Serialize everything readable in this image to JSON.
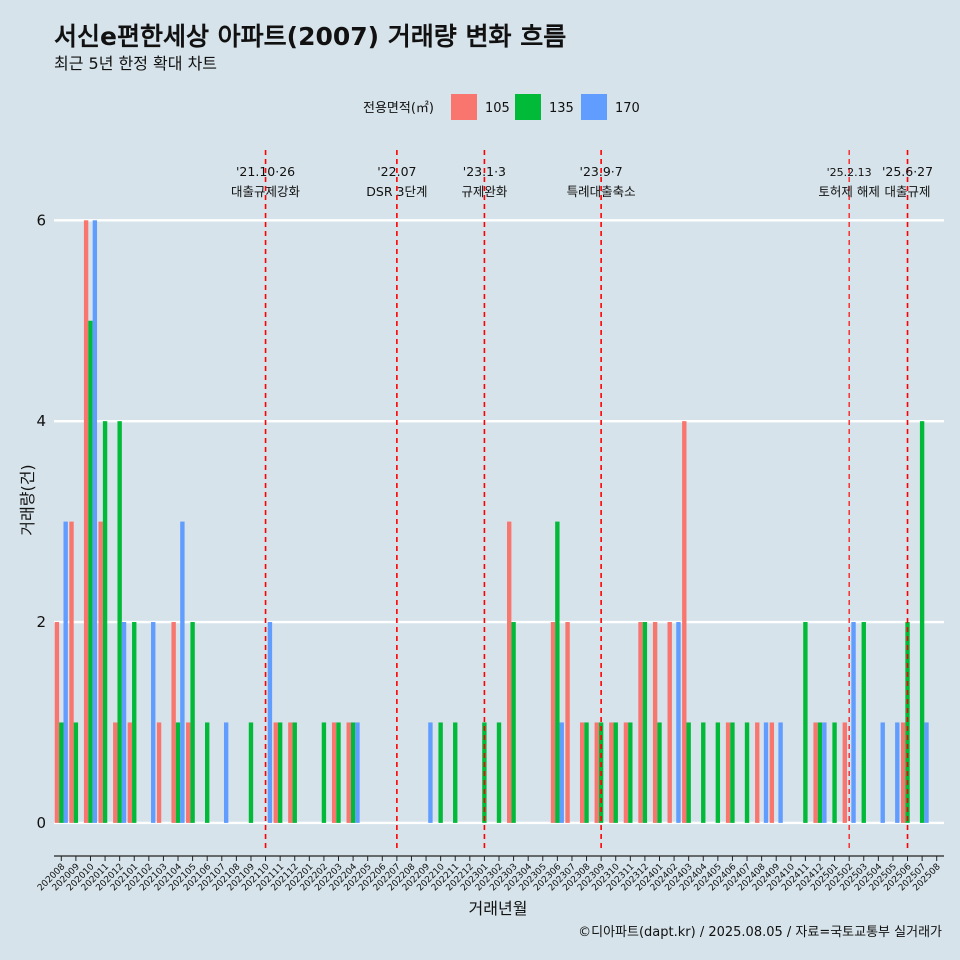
{
  "chart_data": {
    "type": "bar",
    "title": "서신e편한세상 아파트(2007) 거래량 변화 흐름",
    "subtitle": "최근 5년 한정 확대 차트",
    "xlabel": "거래년월",
    "ylabel": "거래량(건)",
    "caption": "©디아파트(dapt.kr) / 2025.08.05 / 자료=국토교통부 실거래가",
    "legend_title": "전용면적(㎡)",
    "legend_position": "top",
    "grid": true,
    "ylim": [
      -0.25,
      6.7
    ],
    "yticks": [
      0,
      2,
      4,
      6
    ],
    "categories": [
      "202008",
      "202009",
      "202010",
      "202011",
      "202012",
      "202101",
      "202102",
      "202103",
      "202104",
      "202105",
      "202106",
      "202107",
      "202108",
      "202109",
      "202110",
      "202111",
      "202112",
      "202201",
      "202202",
      "202203",
      "202204",
      "202205",
      "202206",
      "202207",
      "202208",
      "202209",
      "202210",
      "202211",
      "202212",
      "202301",
      "202302",
      "202303",
      "202304",
      "202305",
      "202306",
      "202307",
      "202308",
      "202309",
      "202310",
      "202311",
      "202312",
      "202401",
      "202402",
      "202403",
      "202404",
      "202405",
      "202406",
      "202407",
      "202408",
      "202409",
      "202410",
      "202411",
      "202412",
      "202501",
      "202502",
      "202503",
      "202504",
      "202505",
      "202506",
      "202507",
      "202508"
    ],
    "series": [
      {
        "name": "105",
        "color": "#f8766d",
        "values": [
          2,
          3,
          6,
          3,
          1,
          1,
          0,
          1,
          2,
          1,
          0,
          0,
          0,
          0,
          0,
          1,
          1,
          0,
          0,
          1,
          1,
          0,
          0,
          0,
          0,
          0,
          0,
          0,
          0,
          0,
          0,
          3,
          0,
          0,
          2,
          2,
          1,
          1,
          1,
          1,
          2,
          2,
          2,
          4,
          0,
          0,
          1,
          0,
          1,
          1,
          0,
          0,
          1,
          0,
          1,
          0,
          0,
          0,
          1,
          0,
          0
        ]
      },
      {
        "name": "135",
        "color": "#00ba38",
        "values": [
          1,
          1,
          5,
          4,
          4,
          2,
          0,
          0,
          1,
          2,
          1,
          0,
          0,
          1,
          0,
          1,
          1,
          0,
          1,
          1,
          1,
          0,
          0,
          0,
          0,
          0,
          1,
          1,
          0,
          1,
          1,
          2,
          0,
          0,
          3,
          0,
          1,
          1,
          1,
          1,
          2,
          1,
          0,
          1,
          1,
          1,
          1,
          1,
          0,
          0,
          0,
          2,
          1,
          1,
          0,
          2,
          0,
          0,
          2,
          4,
          0
        ]
      },
      {
        "name": "170",
        "color": "#619cff",
        "values": [
          3,
          0,
          6,
          0,
          2,
          0,
          2,
          0,
          3,
          0,
          0,
          1,
          0,
          0,
          2,
          0,
          0,
          0,
          0,
          0,
          1,
          0,
          0,
          0,
          0,
          1,
          0,
          0,
          0,
          0,
          0,
          0,
          0,
          0,
          1,
          0,
          0,
          0,
          0,
          0,
          0,
          0,
          2,
          0,
          0,
          0,
          0,
          0,
          1,
          1,
          0,
          0,
          1,
          0,
          2,
          0,
          1,
          1,
          0,
          1,
          0
        ]
      }
    ],
    "annotations": [
      {
        "x": "202110",
        "label_top": "'21.10·26",
        "label_bottom": "대출규제강화"
      },
      {
        "x": "202207",
        "label_top": "'22.07",
        "label_bottom": "DSR 3단계"
      },
      {
        "x": "202301",
        "label_top": "'23.1·3",
        "label_bottom": "규제완화"
      },
      {
        "x": "202309",
        "label_top": "'23.9·7",
        "label_bottom": "특례대출축소"
      },
      {
        "x": "202502",
        "label_top": "'25.2.13",
        "label_bottom": "토허제 해제",
        "small": true
      },
      {
        "x": "202506",
        "label_top": "'25.6·27",
        "label_bottom": "대출규제"
      }
    ]
  }
}
